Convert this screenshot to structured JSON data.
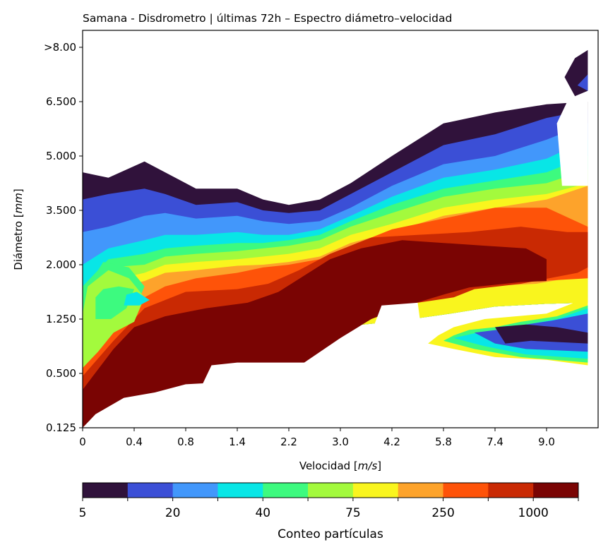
{
  "chart_data": {
    "type": "contour",
    "title": "Samana - Disdrometro | últimas 72h – Espectro diámetro–velocidad",
    "xlabel": "Velocidad [m/s]",
    "ylabel": "Diámetro [mm]",
    "x_ticks": [
      "0",
      "0.4",
      "0.8",
      "1.4",
      "2.2",
      "3.0",
      "4.2",
      "5.8",
      "7.4",
      "9.0"
    ],
    "y_ticks": [
      "0.125",
      "0.500",
      "1.250",
      "2.000",
      "3.500",
      "5.000",
      "6.500",
      ">8.00"
    ],
    "colorbar": {
      "label": "Conteo partículas",
      "ticks": [
        "5",
        "20",
        "40",
        "75",
        "250",
        "1000"
      ],
      "levels": 11,
      "colors": [
        "#30123b",
        "#3b4fd6",
        "#4297fb",
        "#08e6e6",
        "#3dfa7f",
        "#a3fa3d",
        "#f9f51e",
        "#fda32b",
        "#fe5309",
        "#c92903",
        "#7a0403"
      ]
    },
    "contour_bands": [
      {
        "level": 0,
        "points": [
          [
            0,
            2.04
          ],
          [
            0.5,
            1.95
          ],
          [
            1.3,
            1.92
          ],
          [
            2.0,
            1.72
          ],
          [
            3.0,
            1.79
          ],
          [
            4.0,
            1.75
          ],
          [
            5.0,
            1.86
          ],
          [
            6.0,
            1.95
          ],
          [
            7.0,
            2.08
          ],
          [
            8.0,
            2.23
          ],
          [
            9.0,
            2.28
          ],
          [
            9.8,
            2.3
          ],
          [
            9.8,
            6.0
          ],
          [
            9.0,
            5.95
          ],
          [
            8.0,
            5.8
          ],
          [
            7.0,
            5.6
          ],
          [
            6.0,
            5.0
          ],
          [
            5.2,
            4.5
          ],
          [
            4.6,
            4.2
          ],
          [
            4.0,
            4.1
          ],
          [
            3.5,
            4.2
          ],
          [
            3.0,
            4.4
          ],
          [
            2.2,
            4.4
          ],
          [
            1.6,
            4.7
          ],
          [
            1.2,
            4.9
          ],
          [
            0.5,
            4.6
          ],
          [
            0.0,
            4.7
          ]
        ]
      },
      {
        "level": 1,
        "points": [
          [
            0,
            2.04
          ],
          [
            0.5,
            1.95
          ],
          [
            1.3,
            1.92
          ],
          [
            2.0,
            1.72
          ],
          [
            3.0,
            1.79
          ],
          [
            4.0,
            1.75
          ],
          [
            5.0,
            1.86
          ],
          [
            6.0,
            1.95
          ],
          [
            7.0,
            2.08
          ],
          [
            8.0,
            2.23
          ],
          [
            9.0,
            2.28
          ],
          [
            9.8,
            2.3
          ],
          [
            9.8,
            5.85
          ],
          [
            9.0,
            5.7
          ],
          [
            8.0,
            5.4
          ],
          [
            7.0,
            5.2
          ],
          [
            6.0,
            4.7
          ],
          [
            5.2,
            4.3
          ],
          [
            4.6,
            4.0
          ],
          [
            4.0,
            3.95
          ],
          [
            3.5,
            4.0
          ],
          [
            3.0,
            4.15
          ],
          [
            2.2,
            4.1
          ],
          [
            1.6,
            4.3
          ],
          [
            1.2,
            4.4
          ],
          [
            0.5,
            4.3
          ],
          [
            0.0,
            4.2
          ]
        ]
      },
      {
        "level": 2,
        "points": [
          [
            0,
            2.04
          ],
          [
            0.5,
            1.95
          ],
          [
            1.3,
            1.92
          ],
          [
            2.0,
            1.72
          ],
          [
            3.0,
            1.79
          ],
          [
            4.0,
            1.75
          ],
          [
            5.0,
            1.86
          ],
          [
            6.0,
            1.95
          ],
          [
            7.0,
            2.08
          ],
          [
            8.0,
            2.23
          ],
          [
            9.0,
            2.28
          ],
          [
            9.8,
            2.3
          ],
          [
            9.8,
            5.6
          ],
          [
            9.0,
            5.3
          ],
          [
            8.0,
            5.0
          ],
          [
            7.0,
            4.85
          ],
          [
            6.0,
            4.45
          ],
          [
            5.2,
            4.05
          ],
          [
            4.6,
            3.8
          ],
          [
            4.0,
            3.75
          ],
          [
            3.5,
            3.8
          ],
          [
            3.0,
            3.9
          ],
          [
            2.2,
            3.85
          ],
          [
            1.6,
            3.95
          ],
          [
            1.2,
            3.9
          ],
          [
            0.5,
            3.7
          ],
          [
            0.0,
            3.6
          ]
        ]
      },
      {
        "level": 3,
        "points": [
          [
            0,
            2.04
          ],
          [
            0.5,
            1.95
          ],
          [
            1.3,
            1.92
          ],
          [
            2.0,
            1.72
          ],
          [
            3.0,
            1.79
          ],
          [
            4.0,
            1.75
          ],
          [
            5.0,
            1.86
          ],
          [
            6.0,
            1.95
          ],
          [
            7.0,
            2.08
          ],
          [
            8.0,
            2.23
          ],
          [
            9.0,
            2.28
          ],
          [
            9.8,
            2.3
          ],
          [
            9.8,
            5.3
          ],
          [
            9.0,
            4.95
          ],
          [
            8.0,
            4.75
          ],
          [
            7.0,
            4.6
          ],
          [
            6.0,
            4.25
          ],
          [
            5.2,
            3.9
          ],
          [
            4.6,
            3.65
          ],
          [
            4.0,
            3.55
          ],
          [
            3.5,
            3.55
          ],
          [
            3.0,
            3.6
          ],
          [
            2.2,
            3.55
          ],
          [
            1.6,
            3.55
          ],
          [
            1.2,
            3.45
          ],
          [
            0.5,
            3.3
          ],
          [
            0.0,
            3.0
          ]
        ]
      },
      {
        "level": 4,
        "points": [
          [
            0,
            2.04
          ],
          [
            0.5,
            1.95
          ],
          [
            1.3,
            1.92
          ],
          [
            2.0,
            1.72
          ],
          [
            3.0,
            1.79
          ],
          [
            4.0,
            1.75
          ],
          [
            5.0,
            1.86
          ],
          [
            6.0,
            1.95
          ],
          [
            7.0,
            2.08
          ],
          [
            8.0,
            2.23
          ],
          [
            9.0,
            2.28
          ],
          [
            9.8,
            2.3
          ],
          [
            9.8,
            5.0
          ],
          [
            9.0,
            4.7
          ],
          [
            8.0,
            4.55
          ],
          [
            7.0,
            4.4
          ],
          [
            6.0,
            4.1
          ],
          [
            5.2,
            3.8
          ],
          [
            4.6,
            3.55
          ],
          [
            4.0,
            3.45
          ],
          [
            3.5,
            3.4
          ],
          [
            3.0,
            3.4
          ],
          [
            2.2,
            3.35
          ],
          [
            1.6,
            3.3
          ],
          [
            1.2,
            3.2
          ],
          [
            0.5,
            3.1
          ],
          [
            0.0,
            2.6
          ]
        ]
      },
      {
        "level": 5,
        "points": [
          [
            0,
            2.04
          ],
          [
            0.5,
            1.95
          ],
          [
            1.3,
            1.92
          ],
          [
            2.0,
            1.72
          ],
          [
            3.0,
            1.79
          ],
          [
            4.0,
            1.75
          ],
          [
            5.0,
            1.86
          ],
          [
            6.0,
            1.95
          ],
          [
            7.0,
            2.08
          ],
          [
            8.0,
            2.23
          ],
          [
            9.0,
            2.28
          ],
          [
            9.8,
            2.3
          ],
          [
            9.8,
            4.75
          ],
          [
            9.0,
            4.5
          ],
          [
            8.0,
            4.4
          ],
          [
            7.0,
            4.25
          ],
          [
            6.0,
            3.95
          ],
          [
            5.2,
            3.7
          ],
          [
            4.6,
            3.45
          ],
          [
            4.0,
            3.35
          ],
          [
            3.5,
            3.3
          ],
          [
            3.0,
            3.25
          ],
          [
            2.2,
            3.2
          ],
          [
            1.6,
            3.15
          ],
          [
            1.2,
            3.0
          ],
          [
            0.5,
            2.95
          ],
          [
            0.0,
            2.3
          ]
        ]
      },
      {
        "level": 6,
        "points": [
          [
            0,
            2.04
          ],
          [
            0.5,
            1.95
          ],
          [
            1.3,
            1.92
          ],
          [
            2.0,
            1.72
          ],
          [
            3.0,
            1.79
          ],
          [
            4.0,
            1.75
          ],
          [
            5.0,
            1.86
          ],
          [
            6.0,
            1.95
          ],
          [
            7.0,
            2.08
          ],
          [
            8.0,
            2.23
          ],
          [
            9.0,
            2.28
          ],
          [
            9.8,
            2.3
          ],
          [
            9.8,
            4.5
          ],
          [
            9.0,
            4.3
          ],
          [
            8.0,
            4.2
          ],
          [
            7.0,
            4.05
          ],
          [
            6.0,
            3.75
          ],
          [
            5.2,
            3.55
          ],
          [
            4.6,
            3.3
          ],
          [
            4.0,
            3.2
          ],
          [
            3.5,
            3.15
          ],
          [
            3.0,
            3.1
          ],
          [
            2.2,
            3.05
          ],
          [
            1.6,
            3.0
          ],
          [
            1.2,
            2.85
          ],
          [
            0.5,
            2.7
          ],
          [
            0.0,
            2.1
          ]
        ]
      }
    ]
  }
}
